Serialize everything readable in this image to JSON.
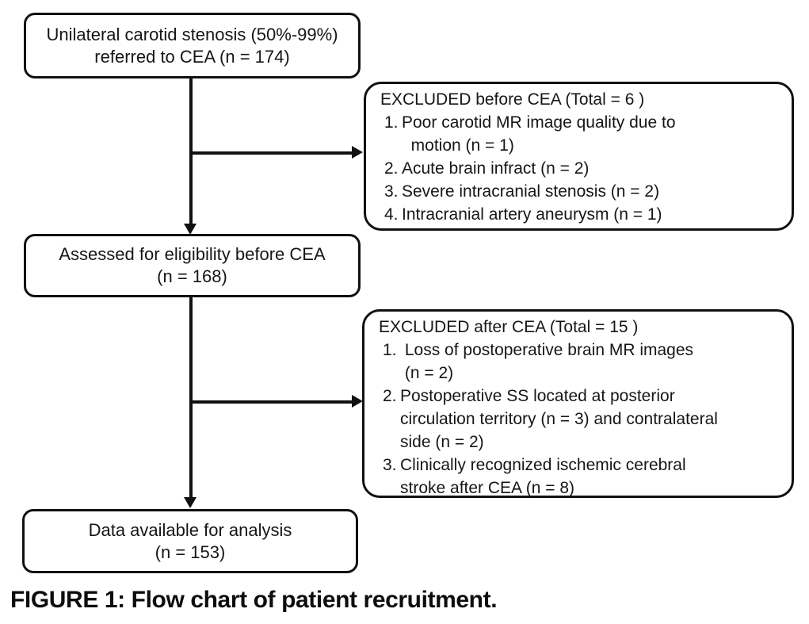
{
  "figure": {
    "caption": "FIGURE 1: Flow chart of patient recruitment.",
    "colors": {
      "background": "#ffffff",
      "border": "#111111",
      "text": "#161616"
    }
  },
  "flow": {
    "referred": {
      "line1": "Unilateral carotid stenosis (50%-99%)",
      "line2": "referred to CEA (n = 174)"
    },
    "excluded_before": {
      "header": "EXCLUDED before CEA (Total = 6 )",
      "items": [
        {
          "num": "1.",
          "text": "Poor carotid MR image quality due to\n  motion (n = 1)"
        },
        {
          "num": "2.",
          "text": "Acute brain infract (n = 2)"
        },
        {
          "num": "3.",
          "text": "Severe intracranial stenosis (n = 2)"
        },
        {
          "num": "4.",
          "text": "Intracranial artery aneurysm (n = 1)"
        }
      ]
    },
    "assessed": {
      "line1": "Assessed for eligibility before CEA",
      "line2": "(n = 168)"
    },
    "excluded_after": {
      "header": "EXCLUDED after CEA (Total = 15 )",
      "items": [
        {
          "num": "1.",
          "text": " Loss of postoperative brain MR images\n (n = 2)"
        },
        {
          "num": "2.",
          "text": "Postoperative SS located at posterior\ncirculation territory (n = 3) and contralateral\nside (n = 2)"
        },
        {
          "num": "3.",
          "text": "Clinically recognized ischemic cerebral\nstroke after CEA (n = 8)"
        }
      ]
    },
    "analysis": {
      "line1": "Data available for analysis",
      "line2": "(n = 153)"
    }
  }
}
